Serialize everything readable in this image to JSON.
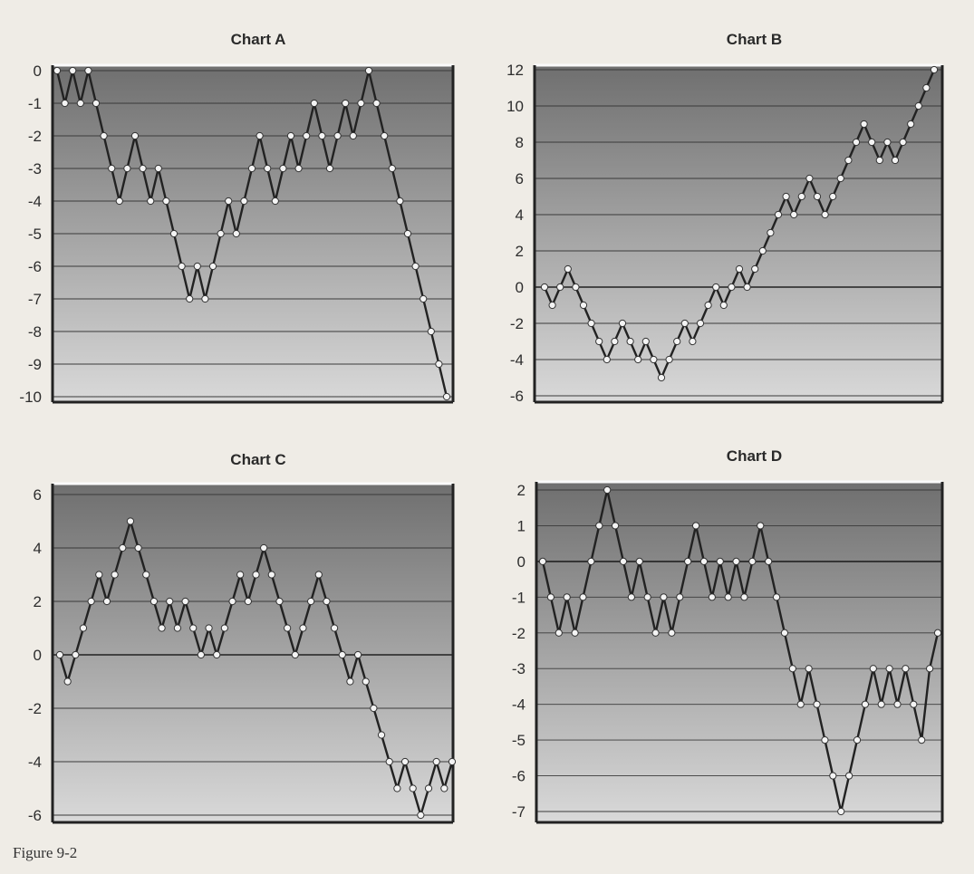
{
  "caption": "Figure 9-2",
  "colors": {
    "background": "#efece6",
    "plot_dark": "#6f6f6f",
    "plot_light": "#d9d9d9",
    "line": "#222222",
    "marker_fill": "#f4f4f4"
  },
  "chart_data": [
    {
      "type": "line",
      "title": "Chart A",
      "xlabel": "",
      "ylabel": "",
      "ylim": [
        -10,
        0
      ],
      "yticks": [
        0,
        -1,
        -2,
        -3,
        -4,
        -5,
        -6,
        -7,
        -8,
        -9,
        -10
      ],
      "grid": true,
      "series": [
        {
          "values": [
            0,
            -1,
            0,
            -1,
            0,
            -1,
            -2,
            -3,
            -4,
            -3,
            -2,
            -3,
            -4,
            -3,
            -4,
            -5,
            -6,
            -7,
            -6,
            -7,
            -6,
            -5,
            -4,
            -5,
            -4,
            -3,
            -2,
            -3,
            -4,
            -3,
            -2,
            -3,
            -2,
            -1,
            -2,
            -3,
            -2,
            -1,
            -2,
            -1,
            0,
            -1,
            -2,
            -3,
            -4,
            -5,
            -6,
            -7,
            -8,
            -9,
            -10
          ]
        }
      ]
    },
    {
      "type": "line",
      "title": "Chart B",
      "xlabel": "",
      "ylabel": "",
      "ylim": [
        -6,
        12
      ],
      "yticks": [
        12,
        10,
        8,
        6,
        4,
        2,
        0,
        -2,
        -4,
        -6
      ],
      "grid": true,
      "series": [
        {
          "values": [
            0,
            -1,
            0,
            1,
            0,
            -1,
            -2,
            -3,
            -4,
            -3,
            -2,
            -3,
            -4,
            -3,
            -4,
            -5,
            -4,
            -3,
            -2,
            -3,
            -2,
            -1,
            0,
            -1,
            0,
            1,
            0,
            1,
            2,
            3,
            4,
            5,
            4,
            5,
            6,
            5,
            4,
            5,
            6,
            7,
            8,
            9,
            8,
            7,
            8,
            7,
            8,
            9,
            10,
            11,
            12
          ]
        }
      ]
    },
    {
      "type": "line",
      "title": "Chart C",
      "xlabel": "",
      "ylabel": "",
      "ylim": [
        -6,
        6
      ],
      "yticks": [
        6,
        4,
        2,
        0,
        -2,
        -4,
        -6
      ],
      "grid": true,
      "series": [
        {
          "values": [
            0,
            -1,
            0,
            1,
            2,
            3,
            2,
            3,
            4,
            5,
            4,
            3,
            2,
            1,
            2,
            1,
            2,
            1,
            0,
            1,
            0,
            1,
            2,
            3,
            2,
            3,
            4,
            3,
            2,
            1,
            0,
            1,
            2,
            3,
            2,
            1,
            0,
            -1,
            0,
            -1,
            -2,
            -3,
            -4,
            -5,
            -4,
            -5,
            -6,
            -5,
            -4,
            -5,
            -4
          ]
        }
      ]
    },
    {
      "type": "line",
      "title": "Chart D",
      "xlabel": "",
      "ylabel": "",
      "ylim": [
        -7,
        2
      ],
      "yticks": [
        2,
        1,
        0,
        -1,
        -2,
        -3,
        -4,
        -5,
        -6,
        -7
      ],
      "grid": true,
      "series": [
        {
          "values": [
            0,
            -1,
            -2,
            -1,
            -2,
            -1,
            0,
            1,
            2,
            1,
            0,
            -1,
            0,
            -1,
            -2,
            -1,
            -2,
            -1,
            0,
            1,
            0,
            -1,
            0,
            -1,
            0,
            -1,
            0,
            1,
            0,
            -1,
            -2,
            -3,
            -4,
            -3,
            -4,
            -5,
            -6,
            -7,
            -6,
            -5,
            -4,
            -3,
            -4,
            -3,
            -4,
            -3,
            -4,
            -5,
            -3,
            -2
          ]
        }
      ]
    }
  ]
}
